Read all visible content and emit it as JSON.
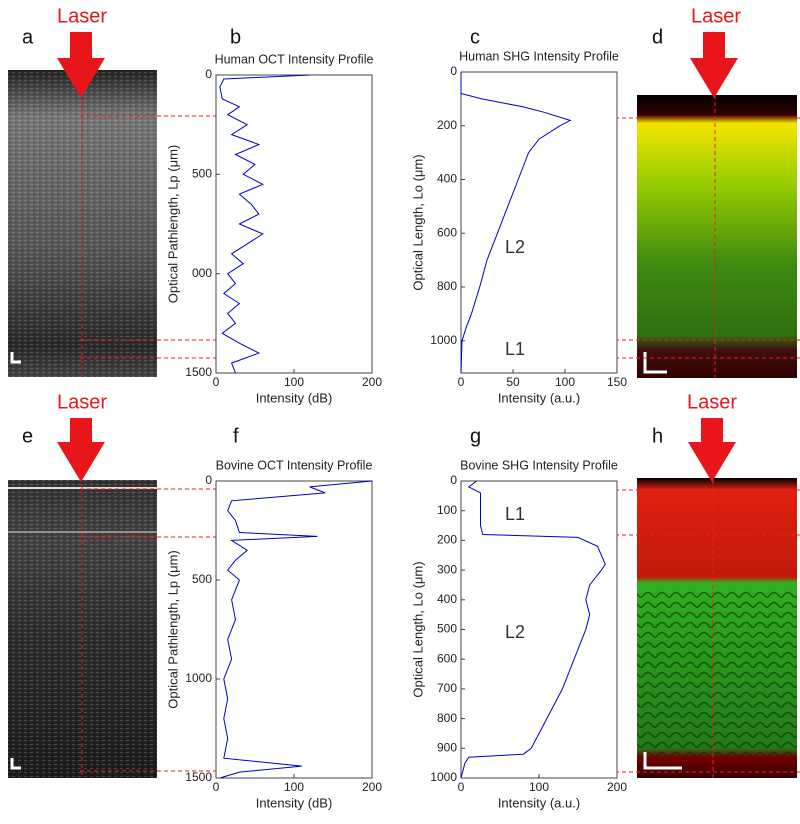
{
  "panel_labels": [
    "a",
    "b",
    "c",
    "d",
    "e",
    "f",
    "g",
    "h"
  ],
  "laser_labels": [
    "Laser",
    "Laser",
    "Laser",
    "Laser"
  ],
  "chart_data": [
    {
      "type": "line",
      "title": "Human OCT Intensity Profile",
      "x_label": "Intensity (dB)",
      "y_label": "Optical Pathlength, Lp (μm)",
      "color": "#0000cc",
      "depth": [
        0,
        20,
        60,
        120,
        160,
        200,
        250,
        300,
        350,
        400,
        450,
        500,
        550,
        600,
        650,
        700,
        750,
        800,
        850,
        900,
        950,
        1000,
        1050,
        1100,
        1150,
        1200,
        1250,
        1300,
        1350,
        1400,
        1450,
        1500
      ],
      "values": [
        120,
        10,
        5,
        8,
        30,
        15,
        40,
        20,
        55,
        25,
        50,
        35,
        60,
        30,
        45,
        55,
        30,
        60,
        40,
        20,
        35,
        15,
        25,
        10,
        30,
        15,
        25,
        8,
        30,
        55,
        20,
        25
      ],
      "xlim": [
        0,
        200
      ],
      "xticks": [
        0,
        100,
        200
      ],
      "ylim": [
        0,
        1500
      ],
      "yticks": [
        0,
        500,
        {
          "value": 1000,
          "label": "000"
        },
        1500
      ]
    },
    {
      "type": "line",
      "title": "Human SHG Intensity Profile",
      "x_label": "Intensity (a.u.)",
      "y_label": "Optical Length, Lo (μm)",
      "color": "#0000cc",
      "depth": [
        0,
        80,
        100,
        130,
        150,
        180,
        200,
        250,
        300,
        400,
        500,
        600,
        700,
        800,
        900,
        950,
        1000,
        1120
      ],
      "values": [
        0,
        0,
        20,
        60,
        80,
        105,
        95,
        75,
        65,
        55,
        45,
        35,
        25,
        18,
        10,
        5,
        1,
        0
      ],
      "xlim": [
        0,
        150
      ],
      "xticks": [
        0,
        50,
        100,
        150
      ],
      "ylim": [
        0,
        1120
      ],
      "yticks": [
        0,
        200,
        400,
        600,
        800,
        1000
      ],
      "annotations": [
        "L2",
        "L1"
      ]
    },
    {
      "type": "line",
      "title": "Bovine OCT Intensity Profile",
      "x_label": "Intensity (dB)",
      "y_label": "Optical Pathlength, Lp (μm)",
      "color": "#0000cc",
      "depth": [
        0,
        30,
        60,
        100,
        150,
        200,
        260,
        280,
        300,
        350,
        400,
        450,
        500,
        600,
        700,
        800,
        900,
        1000,
        1100,
        1200,
        1300,
        1400,
        1440,
        1470,
        1500
      ],
      "values": [
        200,
        120,
        140,
        20,
        15,
        25,
        30,
        130,
        20,
        40,
        25,
        15,
        30,
        20,
        25,
        15,
        20,
        10,
        15,
        10,
        15,
        10,
        110,
        30,
        5
      ],
      "xlim": [
        0,
        200
      ],
      "xticks": [
        0,
        100,
        200
      ],
      "ylim": [
        0,
        1500
      ],
      "yticks": [
        0,
        500,
        1000,
        1500
      ]
    },
    {
      "type": "line",
      "title": "Bovine SHG Intensity Profile",
      "x_label": "Intensity (a.u.)",
      "y_label": "Optical Length, Lo (μm)",
      "color": "#0000cc",
      "depth": [
        0,
        20,
        40,
        60,
        100,
        150,
        180,
        190,
        220,
        250,
        280,
        300,
        350,
        400,
        450,
        500,
        600,
        700,
        800,
        850,
        900,
        920,
        930,
        950,
        1000
      ],
      "values": [
        20,
        10,
        25,
        25,
        25,
        25,
        28,
        150,
        175,
        180,
        185,
        180,
        165,
        160,
        165,
        160,
        145,
        130,
        110,
        100,
        90,
        80,
        10,
        5,
        0
      ],
      "xlim": [
        0,
        200
      ],
      "xticks": [
        0,
        100,
        200
      ],
      "ylim": [
        0,
        1000
      ],
      "yticks": [
        0,
        100,
        200,
        300,
        400,
        500,
        600,
        700,
        800,
        900,
        1000
      ],
      "annotations": [
        "L1",
        "L2"
      ]
    }
  ]
}
